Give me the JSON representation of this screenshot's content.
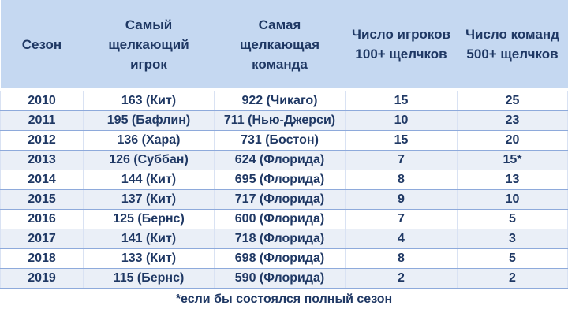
{
  "table": {
    "headers": [
      "Сезон",
      "Самый\nщелкающий\nигрок",
      "Самая\nщелкающая\nкоманда",
      "Число игроков\n100+ щелчков",
      "Число команд\n500+ щелчков"
    ],
    "rows": [
      [
        "2010",
        "163 (Кит)",
        "922 (Чикаго)",
        "15",
        "25"
      ],
      [
        "2011",
        "195 (Бафлин)",
        "711 (Нью-Джерси)",
        "10",
        "23"
      ],
      [
        "2012",
        "136 (Хара)",
        "731 (Бостон)",
        "15",
        "20"
      ],
      [
        "2013",
        "126 (Суббан)",
        "624 (Флорида)",
        "7",
        "15*"
      ],
      [
        "2014",
        "144 (Кит)",
        "695 (Флорида)",
        "8",
        "13"
      ],
      [
        "2015",
        "137 (Кит)",
        "717 (Флорида)",
        "9",
        "10"
      ],
      [
        "2016",
        "125 (Бернс)",
        "600 (Флорида)",
        "7",
        "5"
      ],
      [
        "2017",
        "141 (Кит)",
        "718 (Флорида)",
        "4",
        "3"
      ],
      [
        "2018",
        "133 (Кит)",
        "698 (Флорида)",
        "8",
        "5"
      ],
      [
        "2019",
        "115 (Бернс)",
        "590 (Флорида)",
        "2",
        "2"
      ]
    ],
    "footnote": "*если бы состоялся полный сезон"
  },
  "colors": {
    "header_bg": "#c5d8f1",
    "text": "#1f3864",
    "row_alt_bg": "#eaeff7",
    "border": "#8eaadb"
  }
}
